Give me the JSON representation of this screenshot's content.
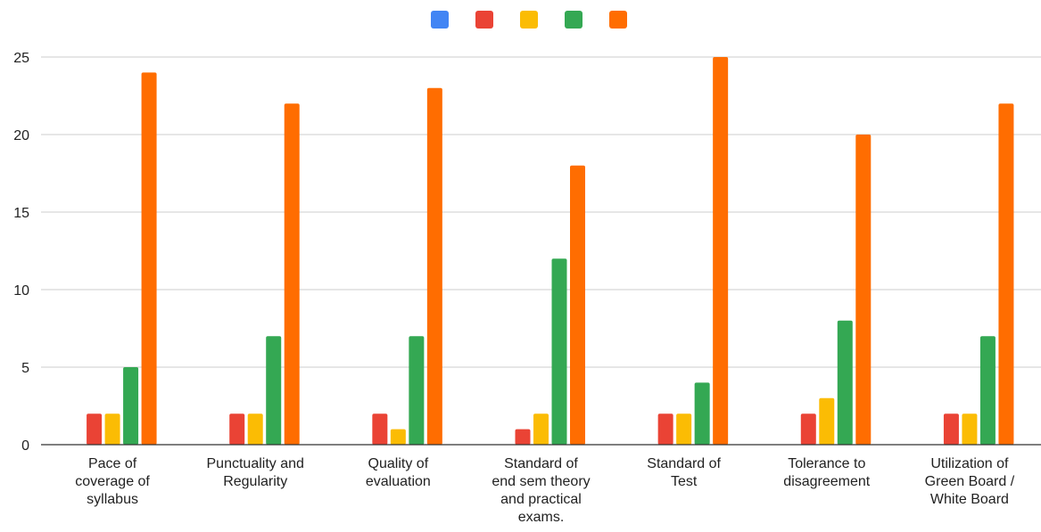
{
  "chart_data": {
    "type": "bar",
    "title": "",
    "xlabel": "",
    "ylabel": "",
    "ylim": [
      0,
      25
    ],
    "yticks": [
      0,
      5,
      10,
      15,
      20,
      25
    ],
    "grid": true,
    "legend_position": "top-center",
    "categories": [
      [
        "Pace of",
        "coverage of",
        "syllabus"
      ],
      [
        "Punctuality and",
        "Regularity"
      ],
      [
        "Quality of",
        "evaluation"
      ],
      [
        "Standard of",
        "end sem theory",
        "and practical",
        "exams."
      ],
      [
        "Standard of",
        "Test"
      ],
      [
        "Tolerance to",
        "disagreement"
      ],
      [
        "Utilization of",
        "Green Board /",
        "White Board"
      ]
    ],
    "series": [
      {
        "color": "#4285f4",
        "values": [
          0,
          0,
          0,
          0,
          0,
          0,
          0
        ]
      },
      {
        "color": "#ea4335",
        "values": [
          2,
          2,
          2,
          1,
          2,
          2,
          2
        ]
      },
      {
        "color": "#fbbc04",
        "values": [
          2,
          2,
          1,
          2,
          2,
          3,
          2
        ]
      },
      {
        "color": "#34a853",
        "values": [
          5,
          7,
          7,
          12,
          4,
          8,
          7
        ]
      },
      {
        "color": "#ff6d01",
        "values": [
          24,
          22,
          23,
          18,
          25,
          20,
          22
        ]
      }
    ]
  }
}
